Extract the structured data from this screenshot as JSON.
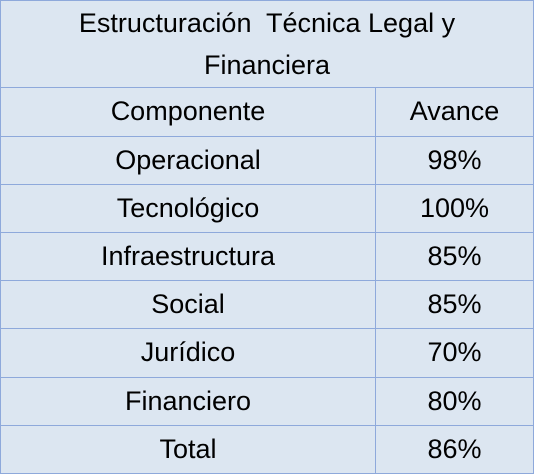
{
  "table": {
    "title": "Estructuración  Técnica Legal y Financiera",
    "header": [
      "Componente",
      "Avance"
    ],
    "rows": [
      [
        "Operacional",
        "98%"
      ],
      [
        "Tecnológico",
        "100%"
      ],
      [
        "Infraestructura",
        "85%"
      ],
      [
        "Social",
        "85%"
      ],
      [
        "Jurídico",
        "70%"
      ],
      [
        "Financiero",
        "80%"
      ],
      [
        "Total",
        "86%"
      ]
    ]
  }
}
